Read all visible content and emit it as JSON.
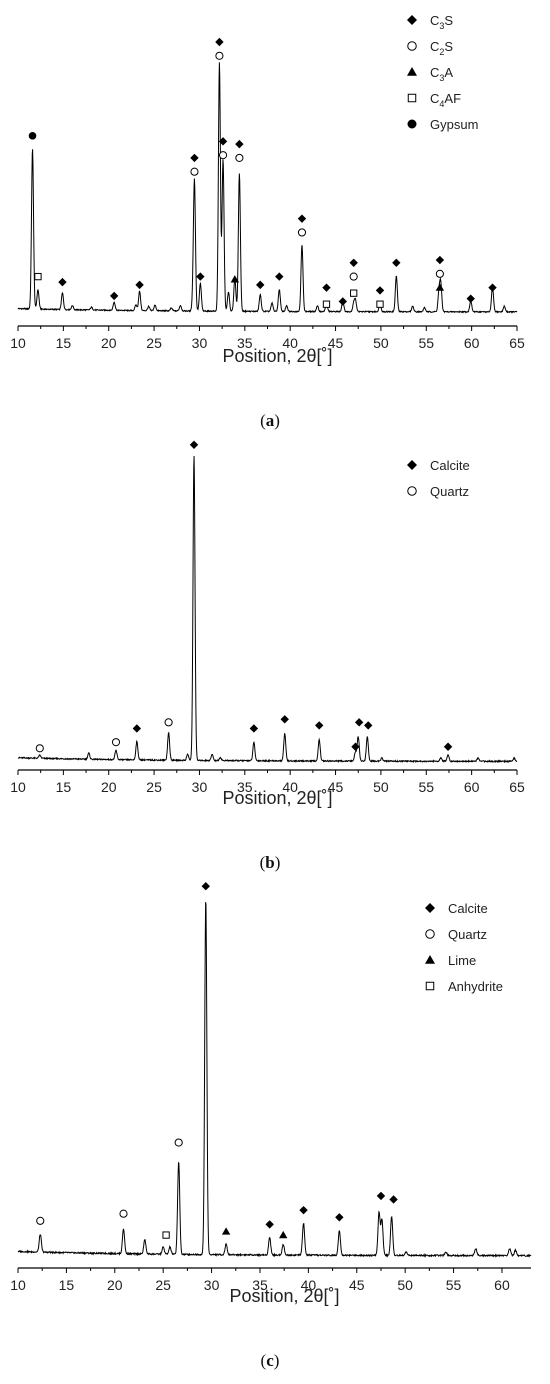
{
  "chart_data": [
    {
      "type": "line",
      "panel": "a",
      "caption": "(a)",
      "xlabel": "Position, 2θ[˚]",
      "ylabel": "",
      "xlim": [
        10,
        65
      ],
      "x_ticks": [
        "10",
        "15",
        "20",
        "25",
        "30",
        "35",
        "40",
        "45",
        "50",
        "55",
        "60",
        "65"
      ],
      "grid": false,
      "legend_position": "top-right",
      "legend": [
        {
          "marker": "diamond-filled",
          "label": "C",
          "sub": "3",
          "suffix": "S"
        },
        {
          "marker": "circle-open",
          "label": "C",
          "sub": "2",
          "suffix": "S"
        },
        {
          "marker": "triangle-filled",
          "label": "C",
          "sub": "3",
          "suffix": "A"
        },
        {
          "marker": "square-open",
          "label": "C",
          "sub": "4",
          "suffix": "AF"
        },
        {
          "marker": "circle-filled",
          "label": "Gypsum",
          "sub": "",
          "suffix": ""
        }
      ],
      "peaks": [
        [
          11.6,
          0.58
        ],
        [
          12.2,
          0.07
        ],
        [
          14.9,
          0.06
        ],
        [
          16.0,
          0.015
        ],
        [
          18.1,
          0.01
        ],
        [
          20.6,
          0.03
        ],
        [
          23.0,
          0.02
        ],
        [
          23.4,
          0.07
        ],
        [
          24.4,
          0.015
        ],
        [
          25.1,
          0.02
        ],
        [
          26.9,
          0.01
        ],
        [
          27.9,
          0.02
        ],
        [
          29.3,
          0.05
        ],
        [
          29.45,
          0.46
        ],
        [
          30.1,
          0.1
        ],
        [
          32.2,
          0.9
        ],
        [
          32.6,
          0.55
        ],
        [
          33.2,
          0.07
        ],
        [
          33.9,
          0.12
        ],
        [
          34.4,
          0.5
        ],
        [
          36.7,
          0.06
        ],
        [
          38.0,
          0.03
        ],
        [
          38.8,
          0.08
        ],
        [
          39.6,
          0.02
        ],
        [
          41.3,
          0.24
        ],
        [
          43.0,
          0.02
        ],
        [
          44.0,
          0.03
        ],
        [
          45.8,
          0.04
        ],
        [
          47.0,
          0.03
        ],
        [
          47.2,
          0.04
        ],
        [
          49.9,
          0.03
        ],
        [
          51.7,
          0.13
        ],
        [
          53.5,
          0.02
        ],
        [
          54.8,
          0.015
        ],
        [
          56.4,
          0.07
        ],
        [
          56.6,
          0.1
        ],
        [
          59.9,
          0.04
        ],
        [
          62.3,
          0.09
        ],
        [
          63.6,
          0.02
        ]
      ],
      "baseline": 0.02,
      "markers": [
        {
          "type": "circle-filled",
          "x": 11.6,
          "y": 0.66
        },
        {
          "type": "square-open",
          "x": 12.2,
          "y": 0.15
        },
        {
          "type": "diamond-filled",
          "x": 14.9,
          "y": 0.13
        },
        {
          "type": "diamond-filled",
          "x": 20.6,
          "y": 0.08
        },
        {
          "type": "diamond-filled",
          "x": 23.4,
          "y": 0.12
        },
        {
          "type": "circle-open",
          "x": 29.45,
          "y": 0.53
        },
        {
          "type": "diamond-filled",
          "x": 29.45,
          "y": 0.58
        },
        {
          "type": "diamond-filled",
          "x": 30.1,
          "y": 0.15
        },
        {
          "type": "circle-open",
          "x": 32.2,
          "y": 0.95
        },
        {
          "type": "diamond-filled",
          "x": 32.2,
          "y": 1.0
        },
        {
          "type": "circle-open",
          "x": 32.6,
          "y": 0.59
        },
        {
          "type": "diamond-filled",
          "x": 32.6,
          "y": 0.64
        },
        {
          "type": "triangle-filled",
          "x": 33.9,
          "y": 0.14
        },
        {
          "type": "circle-open",
          "x": 34.4,
          "y": 0.58
        },
        {
          "type": "diamond-filled",
          "x": 34.4,
          "y": 0.63
        },
        {
          "type": "diamond-filled",
          "x": 36.7,
          "y": 0.12
        },
        {
          "type": "diamond-filled",
          "x": 38.8,
          "y": 0.15
        },
        {
          "type": "circle-open",
          "x": 41.3,
          "y": 0.31
        },
        {
          "type": "diamond-filled",
          "x": 41.3,
          "y": 0.36
        },
        {
          "type": "diamond-filled",
          "x": 44.0,
          "y": 0.11
        },
        {
          "type": "square-open",
          "x": 44.0,
          "y": 0.05
        },
        {
          "type": "diamond-filled",
          "x": 45.8,
          "y": 0.06
        },
        {
          "type": "diamond-filled",
          "x": 47.0,
          "y": 0.2
        },
        {
          "type": "circle-open",
          "x": 47.0,
          "y": 0.15
        },
        {
          "type": "square-open",
          "x": 47.0,
          "y": 0.09
        },
        {
          "type": "diamond-filled",
          "x": 49.9,
          "y": 0.1
        },
        {
          "type": "square-open",
          "x": 49.9,
          "y": 0.05
        },
        {
          "type": "diamond-filled",
          "x": 51.7,
          "y": 0.2
        },
        {
          "type": "diamond-filled",
          "x": 56.5,
          "y": 0.21
        },
        {
          "type": "circle-open",
          "x": 56.5,
          "y": 0.16
        },
        {
          "type": "triangle-filled",
          "x": 56.5,
          "y": 0.11
        },
        {
          "type": "diamond-filled",
          "x": 59.9,
          "y": 0.07
        },
        {
          "type": "diamond-filled",
          "x": 62.3,
          "y": 0.11
        }
      ]
    },
    {
      "type": "line",
      "panel": "b",
      "caption": "(b)",
      "xlabel": "Position, 2θ[˚]",
      "ylabel": "",
      "xlim": [
        10,
        65
      ],
      "x_ticks": [
        "10",
        "15",
        "20",
        "25",
        "30",
        "35",
        "40",
        "45",
        "50",
        "55",
        "60",
        "65"
      ],
      "grid": false,
      "legend_position": "top-right",
      "legend": [
        {
          "marker": "diamond-filled",
          "label": "Calcite",
          "sub": "",
          "suffix": ""
        },
        {
          "marker": "circle-open",
          "label": "Quartz",
          "sub": "",
          "suffix": ""
        }
      ],
      "peaks": [
        [
          12.4,
          0.01
        ],
        [
          17.8,
          0.02
        ],
        [
          20.8,
          0.03
        ],
        [
          23.1,
          0.06
        ],
        [
          26.6,
          0.09
        ],
        [
          28.7,
          0.02
        ],
        [
          29.4,
          1.0
        ],
        [
          31.4,
          0.02
        ],
        [
          32.3,
          0.01
        ],
        [
          36.0,
          0.06
        ],
        [
          39.4,
          0.09
        ],
        [
          43.2,
          0.07
        ],
        [
          47.2,
          0.03
        ],
        [
          47.5,
          0.08
        ],
        [
          48.5,
          0.08
        ],
        [
          50.1,
          0.01
        ],
        [
          56.6,
          0.01
        ],
        [
          57.4,
          0.02
        ],
        [
          60.7,
          0.01
        ],
        [
          64.7,
          0.01
        ]
      ],
      "baseline": 0.0,
      "markers": [
        {
          "type": "circle-open",
          "x": 12.4,
          "y": 0.045
        },
        {
          "type": "circle-open",
          "x": 20.8,
          "y": 0.065
        },
        {
          "type": "diamond-filled",
          "x": 23.1,
          "y": 0.11
        },
        {
          "type": "circle-open",
          "x": 26.6,
          "y": 0.13
        },
        {
          "type": "diamond-filled",
          "x": 29.4,
          "y": 1.04
        },
        {
          "type": "diamond-filled",
          "x": 36.0,
          "y": 0.11
        },
        {
          "type": "diamond-filled",
          "x": 39.4,
          "y": 0.14
        },
        {
          "type": "diamond-filled",
          "x": 43.2,
          "y": 0.12
        },
        {
          "type": "diamond-filled",
          "x": 47.2,
          "y": 0.05
        },
        {
          "type": "diamond-filled",
          "x": 47.6,
          "y": 0.13
        },
        {
          "type": "diamond-filled",
          "x": 48.6,
          "y": 0.12
        },
        {
          "type": "diamond-filled",
          "x": 57.4,
          "y": 0.05
        }
      ]
    },
    {
      "type": "line",
      "panel": "c",
      "caption": "(c)",
      "xlabel": "Position, 2θ[˚]",
      "ylabel": "",
      "xlim": [
        10,
        63
      ],
      "x_ticks": [
        "10",
        "15",
        "20",
        "25",
        "30",
        "35",
        "40",
        "45",
        "50",
        "55",
        "60"
      ],
      "grid": false,
      "legend_position": "top-right",
      "legend": [
        {
          "marker": "diamond-filled",
          "label": "Calcite",
          "sub": "",
          "suffix": ""
        },
        {
          "marker": "circle-open",
          "label": "Quartz",
          "sub": "",
          "suffix": ""
        },
        {
          "marker": "triangle-filled",
          "label": "Lime",
          "sub": "",
          "suffix": ""
        },
        {
          "marker": "square-open",
          "label": "Anhydrite",
          "sub": "",
          "suffix": ""
        }
      ],
      "peaks": [
        [
          12.3,
          0.05
        ],
        [
          20.9,
          0.07
        ],
        [
          23.1,
          0.04
        ],
        [
          25.0,
          0.02
        ],
        [
          25.7,
          0.02
        ],
        [
          26.6,
          0.26
        ],
        [
          29.4,
          1.0
        ],
        [
          31.5,
          0.03
        ],
        [
          36.0,
          0.05
        ],
        [
          37.4,
          0.03
        ],
        [
          39.5,
          0.09
        ],
        [
          43.2,
          0.07
        ],
        [
          47.3,
          0.12
        ],
        [
          47.6,
          0.1
        ],
        [
          48.6,
          0.11
        ],
        [
          50.1,
          0.01
        ],
        [
          54.2,
          0.01
        ],
        [
          57.3,
          0.02
        ],
        [
          60.8,
          0.02
        ],
        [
          61.4,
          0.015
        ]
      ],
      "baseline": 0.01,
      "markers": [
        {
          "type": "circle-open",
          "x": 12.3,
          "y": 0.11
        },
        {
          "type": "circle-open",
          "x": 20.9,
          "y": 0.13
        },
        {
          "type": "square-open",
          "x": 25.3,
          "y": 0.07
        },
        {
          "type": "circle-open",
          "x": 26.6,
          "y": 0.33
        },
        {
          "type": "diamond-filled",
          "x": 29.4,
          "y": 1.05
        },
        {
          "type": "triangle-filled",
          "x": 31.5,
          "y": 0.08
        },
        {
          "type": "diamond-filled",
          "x": 36.0,
          "y": 0.1
        },
        {
          "type": "triangle-filled",
          "x": 37.4,
          "y": 0.07
        },
        {
          "type": "diamond-filled",
          "x": 39.5,
          "y": 0.14
        },
        {
          "type": "diamond-filled",
          "x": 43.2,
          "y": 0.12
        },
        {
          "type": "diamond-filled",
          "x": 47.5,
          "y": 0.18
        },
        {
          "type": "diamond-filled",
          "x": 48.8,
          "y": 0.17
        }
      ]
    }
  ]
}
